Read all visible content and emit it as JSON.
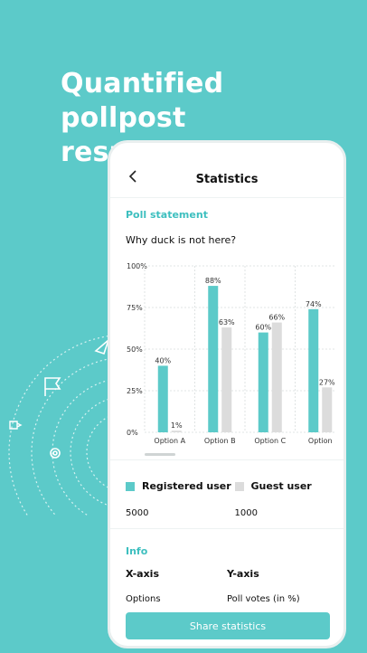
{
  "headline": {
    "line1": "Quantified pollpost",
    "line2": "results"
  },
  "screen": {
    "title": "Statistics"
  },
  "poll": {
    "section_label": "Poll statement",
    "question": "Why duck is not here?"
  },
  "chart_data": {
    "type": "bar",
    "categories": [
      "Option A",
      "Option B",
      "Option C",
      "Option"
    ],
    "series": [
      {
        "name": "Registered user",
        "values": [
          40,
          88,
          60,
          74
        ],
        "color": "#5ccac9"
      },
      {
        "name": "Guest user",
        "values": [
          1,
          63,
          66,
          27
        ],
        "color": "#dcdcdc"
      }
    ],
    "ylim": [
      0,
      100
    ],
    "yticks": [
      "0%",
      "25%",
      "50%",
      "75%",
      "100%"
    ],
    "grid": true,
    "data_labels": [
      [
        "40%",
        "88%",
        "60%",
        "74%"
      ],
      [
        "1%",
        "63%",
        "66%",
        "27%"
      ]
    ]
  },
  "legend": {
    "registered": {
      "label": "Registered user",
      "value": "5000",
      "color": "#5ccac9"
    },
    "guest": {
      "label": "Guest user",
      "value": "1000",
      "color": "#dcdcdc"
    }
  },
  "info": {
    "section_label": "Info",
    "x_head": "X-axis",
    "x_val": "Options",
    "y_head": "Y-axis",
    "y_val": "Poll votes (in %)"
  },
  "share": {
    "label": "Share statistics"
  },
  "icons": {
    "back": "chevron-left-icon"
  }
}
